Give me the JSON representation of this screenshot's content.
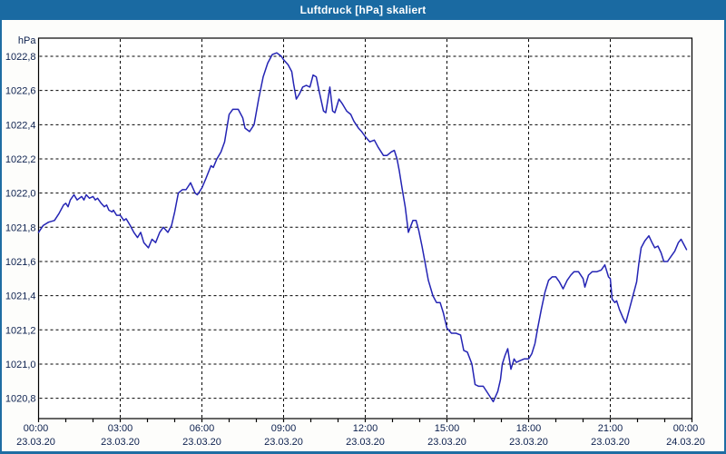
{
  "window": {
    "title": "Luftdruck [hPa] skaliert"
  },
  "colors": {
    "titlebar_bg": "#1a6aa2",
    "window_border": "#1e6da3",
    "page_bg": "#fdfdfb",
    "plot_bg": "#ffffff",
    "axis": "#000000",
    "grid": "#000000",
    "line": "#2424b4",
    "label_text": "#0c204e",
    "title_text": "#ffffff"
  },
  "chart_data": {
    "type": "line",
    "title": "Luftdruck [hPa] skaliert",
    "y_unit_label": "hPa",
    "decimal_separator": ",",
    "grid": "dashed",
    "legend": "none",
    "ylim_ticks": [
      1020.8,
      1022.8
    ],
    "ytick_step": 0.2,
    "yticks": [
      1022.8,
      1022.6,
      1022.4,
      1022.2,
      1022.0,
      1021.8,
      1021.6,
      1021.4,
      1021.2,
      1021.0,
      1020.8
    ],
    "ytick_labels": [
      "1022,8",
      "1022,6",
      "1022,4",
      "1022,2",
      "1022,0",
      "1021,8",
      "1021,6",
      "1021,4",
      "1021,2",
      "1021,0",
      "1020,8"
    ],
    "x_minor_tick_interval_hours": 1,
    "x_major_interval_hours": 3,
    "xticks": [
      {
        "hour": 0,
        "time": "00:00",
        "date": "23.03.20"
      },
      {
        "hour": 3,
        "time": "03:00",
        "date": "23.03.20"
      },
      {
        "hour": 6,
        "time": "06:00",
        "date": "23.03.20"
      },
      {
        "hour": 9,
        "time": "09:00",
        "date": "23.03.20"
      },
      {
        "hour": 12,
        "time": "12:00",
        "date": "23.03.20"
      },
      {
        "hour": 15,
        "time": "15:00",
        "date": "23.03.20"
      },
      {
        "hour": 18,
        "time": "18:00",
        "date": "23.03.20"
      },
      {
        "hour": 21,
        "time": "21:00",
        "date": "23.03.20"
      },
      {
        "hour": 24,
        "time": "00:00",
        "date": "24.03.20"
      }
    ],
    "series": [
      {
        "name": "Luftdruck",
        "unit": "hPa",
        "points_t_minutes_value_hpa": [
          [
            0,
            1021.77
          ],
          [
            10,
            1021.81
          ],
          [
            22,
            1021.83
          ],
          [
            35,
            1021.84
          ],
          [
            45,
            1021.88
          ],
          [
            55,
            1021.93
          ],
          [
            60,
            1021.94
          ],
          [
            65,
            1021.92
          ],
          [
            70,
            1021.96
          ],
          [
            78,
            1021.99
          ],
          [
            85,
            1021.96
          ],
          [
            95,
            1021.98
          ],
          [
            100,
            1021.96
          ],
          [
            105,
            1021.99
          ],
          [
            112,
            1021.97
          ],
          [
            120,
            1021.98
          ],
          [
            125,
            1021.96
          ],
          [
            130,
            1021.97
          ],
          [
            138,
            1021.94
          ],
          [
            145,
            1021.92
          ],
          [
            150,
            1021.93
          ],
          [
            155,
            1021.9
          ],
          [
            162,
            1021.89
          ],
          [
            165,
            1021.9
          ],
          [
            172,
            1021.87
          ],
          [
            180,
            1021.87
          ],
          [
            188,
            1021.84
          ],
          [
            193,
            1021.85
          ],
          [
            202,
            1021.81
          ],
          [
            210,
            1021.77
          ],
          [
            218,
            1021.74
          ],
          [
            225,
            1021.77
          ],
          [
            232,
            1021.71
          ],
          [
            242,
            1021.68
          ],
          [
            250,
            1021.73
          ],
          [
            258,
            1021.71
          ],
          [
            267,
            1021.77
          ],
          [
            275,
            1021.8
          ],
          [
            285,
            1021.77
          ],
          [
            293,
            1021.81
          ],
          [
            300,
            1021.89
          ],
          [
            308,
            1022.0
          ],
          [
            317,
            1022.02
          ],
          [
            325,
            1022.02
          ],
          [
            330,
            1022.04
          ],
          [
            335,
            1022.06
          ],
          [
            345,
            1022.0
          ],
          [
            350,
            1021.99
          ],
          [
            360,
            1022.03
          ],
          [
            368,
            1022.08
          ],
          [
            380,
            1022.16
          ],
          [
            385,
            1022.15
          ],
          [
            393,
            1022.2
          ],
          [
            402,
            1022.24
          ],
          [
            410,
            1022.3
          ],
          [
            420,
            1022.46
          ],
          [
            428,
            1022.49
          ],
          [
            440,
            1022.49
          ],
          [
            450,
            1022.44
          ],
          [
            455,
            1022.38
          ],
          [
            465,
            1022.36
          ],
          [
            475,
            1022.4
          ],
          [
            485,
            1022.55
          ],
          [
            495,
            1022.68
          ],
          [
            505,
            1022.76
          ],
          [
            515,
            1022.81
          ],
          [
            525,
            1022.82
          ],
          [
            535,
            1022.8
          ],
          [
            540,
            1022.78
          ],
          [
            550,
            1022.75
          ],
          [
            558,
            1022.71
          ],
          [
            562,
            1022.64
          ],
          [
            568,
            1022.55
          ],
          [
            575,
            1022.58
          ],
          [
            582,
            1022.62
          ],
          [
            590,
            1022.63
          ],
          [
            598,
            1022.62
          ],
          [
            605,
            1022.69
          ],
          [
            612,
            1022.68
          ],
          [
            618,
            1022.6
          ],
          [
            628,
            1022.48
          ],
          [
            633,
            1022.47
          ],
          [
            642,
            1022.62
          ],
          [
            648,
            1022.48
          ],
          [
            653,
            1022.47
          ],
          [
            662,
            1022.55
          ],
          [
            670,
            1022.52
          ],
          [
            679,
            1022.48
          ],
          [
            688,
            1022.46
          ],
          [
            695,
            1022.42
          ],
          [
            705,
            1022.38
          ],
          [
            712,
            1022.36
          ],
          [
            720,
            1022.33
          ],
          [
            730,
            1022.3
          ],
          [
            740,
            1022.31
          ],
          [
            748,
            1022.27
          ],
          [
            760,
            1022.22
          ],
          [
            768,
            1022.22
          ],
          [
            777,
            1022.24
          ],
          [
            784,
            1022.25
          ],
          [
            790,
            1022.2
          ],
          [
            795,
            1022.13
          ],
          [
            801,
            1022.03
          ],
          [
            808,
            1021.92
          ],
          [
            815,
            1021.77
          ],
          [
            825,
            1021.84
          ],
          [
            832,
            1021.84
          ],
          [
            838,
            1021.78
          ],
          [
            845,
            1021.69
          ],
          [
            852,
            1021.59
          ],
          [
            859,
            1021.49
          ],
          [
            869,
            1021.4
          ],
          [
            877,
            1021.36
          ],
          [
            885,
            1021.36
          ],
          [
            892,
            1021.3
          ],
          [
            900,
            1021.21
          ],
          [
            910,
            1021.18
          ],
          [
            920,
            1021.18
          ],
          [
            930,
            1021.17
          ],
          [
            937,
            1021.08
          ],
          [
            945,
            1021.07
          ],
          [
            955,
            1021.0
          ],
          [
            962,
            1020.88
          ],
          [
            970,
            1020.87
          ],
          [
            980,
            1020.87
          ],
          [
            990,
            1020.83
          ],
          [
            1002,
            1020.78
          ],
          [
            1012,
            1020.84
          ],
          [
            1018,
            1020.91
          ],
          [
            1022,
            1021.0
          ],
          [
            1028,
            1021.05
          ],
          [
            1034,
            1021.09
          ],
          [
            1041,
            1020.97
          ],
          [
            1048,
            1021.03
          ],
          [
            1053,
            1021.01
          ],
          [
            1061,
            1021.02
          ],
          [
            1070,
            1021.03
          ],
          [
            1080,
            1021.03
          ],
          [
            1087,
            1021.06
          ],
          [
            1094,
            1021.12
          ],
          [
            1100,
            1021.21
          ],
          [
            1108,
            1021.32
          ],
          [
            1116,
            1021.42
          ],
          [
            1124,
            1021.49
          ],
          [
            1132,
            1021.51
          ],
          [
            1140,
            1021.51
          ],
          [
            1148,
            1021.48
          ],
          [
            1156,
            1021.44
          ],
          [
            1165,
            1021.49
          ],
          [
            1173,
            1021.52
          ],
          [
            1180,
            1021.54
          ],
          [
            1190,
            1021.54
          ],
          [
            1200,
            1021.5
          ],
          [
            1204,
            1021.45
          ],
          [
            1212,
            1021.52
          ],
          [
            1220,
            1021.54
          ],
          [
            1230,
            1021.54
          ],
          [
            1240,
            1021.55
          ],
          [
            1248,
            1021.58
          ],
          [
            1256,
            1021.51
          ],
          [
            1260,
            1021.5
          ],
          [
            1264,
            1021.38
          ],
          [
            1270,
            1021.36
          ],
          [
            1274,
            1021.37
          ],
          [
            1280,
            1021.32
          ],
          [
            1288,
            1021.27
          ],
          [
            1294,
            1021.24
          ],
          [
            1302,
            1021.32
          ],
          [
            1310,
            1021.4
          ],
          [
            1318,
            1021.48
          ],
          [
            1323,
            1021.59
          ],
          [
            1328,
            1021.68
          ],
          [
            1336,
            1021.72
          ],
          [
            1345,
            1021.75
          ],
          [
            1352,
            1021.71
          ],
          [
            1358,
            1021.68
          ],
          [
            1365,
            1021.69
          ],
          [
            1372,
            1021.65
          ],
          [
            1378,
            1021.6
          ],
          [
            1386,
            1021.6
          ],
          [
            1394,
            1021.63
          ],
          [
            1402,
            1021.66
          ],
          [
            1410,
            1021.71
          ],
          [
            1416,
            1021.73
          ],
          [
            1422,
            1021.7
          ],
          [
            1428,
            1021.67
          ]
        ]
      }
    ]
  }
}
